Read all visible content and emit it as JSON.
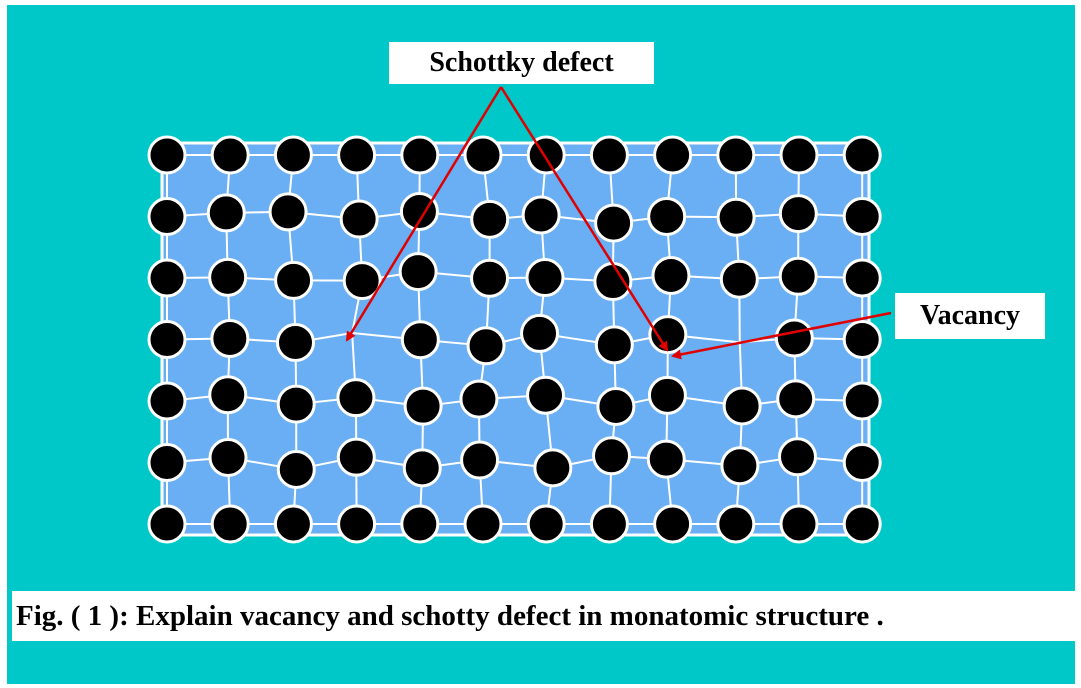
{
  "labels": {
    "schottky_defect": "Schottky defect",
    "vacancy": "Vacancy"
  },
  "caption": "Fig. ( 1 ): Explain vacancy and schotty defect in monatomic structure .",
  "colors": {
    "background": "#00c8c8",
    "cell_fill": "#6aaef4",
    "cell_border": "#ffffff",
    "atom": "#000000",
    "arrow": "#e00000"
  },
  "lattice": {
    "rows": 7,
    "columns": 12,
    "vacancy_sites": [
      [
        3,
        3
      ],
      [
        3,
        9
      ]
    ]
  }
}
